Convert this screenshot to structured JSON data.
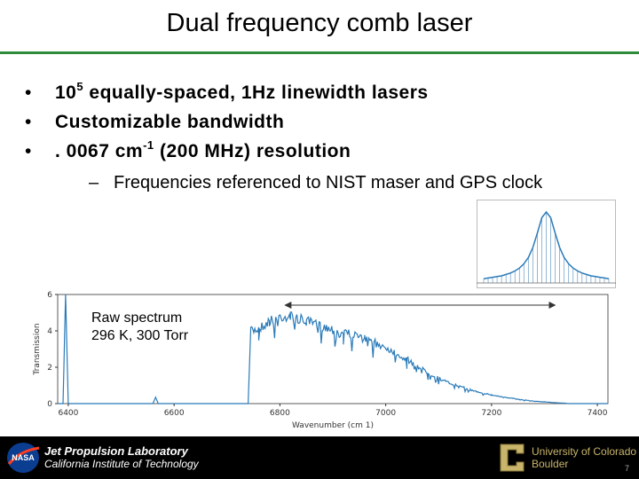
{
  "slide": {
    "title": "Dual frequency comb laser",
    "bullets": [
      {
        "marker": "•",
        "pre": "10",
        "sup": "5",
        "post": " equally-spaced, 1Hz linewidth lasers"
      },
      {
        "marker": "•",
        "pre": "Customizable bandwidth",
        "sup": "",
        "post": ""
      },
      {
        "marker": "•",
        "pre": ". 0067 cm",
        "sup": "-1",
        "post": " (200 MHz) resolution"
      }
    ],
    "sub_bullet": {
      "marker": "–",
      "text": "Frequencies referenced to NIST maser and GPS clock"
    },
    "annotation": {
      "line1": "Raw spectrum",
      "line2": "296 K, 300 Torr"
    }
  },
  "footer": {
    "nasa_logo": "NASA",
    "jpl_name": "Jet Propulsion Laboratory",
    "jpl_sub": "California Institute of Technology",
    "cu_line1": "University of Colorado",
    "cu_line2": "Boulder",
    "page_number": "7"
  },
  "colors": {
    "accent_rule": "#2e8b3a",
    "series": "#2b7bb9",
    "footer_bg": "#000000",
    "cu_gold": "#c8b46a"
  },
  "chart_data": [
    {
      "type": "line",
      "title": "",
      "xlabel": "Wavenumber (cm 1)",
      "ylabel": "Transmission",
      "xlim": [
        6380,
        7420
      ],
      "ylim": [
        0,
        6
      ],
      "xticks": [
        6400,
        6600,
        6800,
        7000,
        7200,
        7400
      ],
      "yticks": [
        0,
        2,
        4,
        6
      ],
      "series": [
        {
          "values_note": "noisy raw transmission spectrum",
          "x": [
            6380,
            6390,
            6395,
            6400,
            6560,
            6565,
            6570,
            6740,
            6745,
            6760,
            6780,
            6800,
            6820,
            6850,
            6880,
            6920,
            6960,
            7000,
            7040,
            7080,
            7120,
            7160,
            7200,
            7240,
            7280,
            7320,
            7340,
            7345,
            7420
          ],
          "y": [
            0,
            0,
            6.0,
            0,
            0,
            0.35,
            0,
            0,
            4.2,
            4.4,
            4.8,
            5.1,
            5.1,
            4.8,
            4.5,
            4.2,
            3.8,
            3.3,
            2.6,
            1.8,
            1.2,
            0.8,
            0.5,
            0.3,
            0.15,
            0.05,
            0.02,
            0,
            0
          ]
        }
      ],
      "arrow_span": [
        6810,
        7320
      ],
      "grid": false
    },
    {
      "type": "bar",
      "title": "",
      "description_note": "inset: comb teeth under a Lorentzian envelope",
      "comb_heights": [
        0.06,
        0.07,
        0.08,
        0.09,
        0.1,
        0.12,
        0.14,
        0.17,
        0.21,
        0.27,
        0.36,
        0.5,
        0.7,
        0.92,
        1.0,
        0.92,
        0.7,
        0.5,
        0.36,
        0.27,
        0.21,
        0.17,
        0.14,
        0.12,
        0.1,
        0.09,
        0.08,
        0.07,
        0.06
      ],
      "grid": false
    }
  ]
}
